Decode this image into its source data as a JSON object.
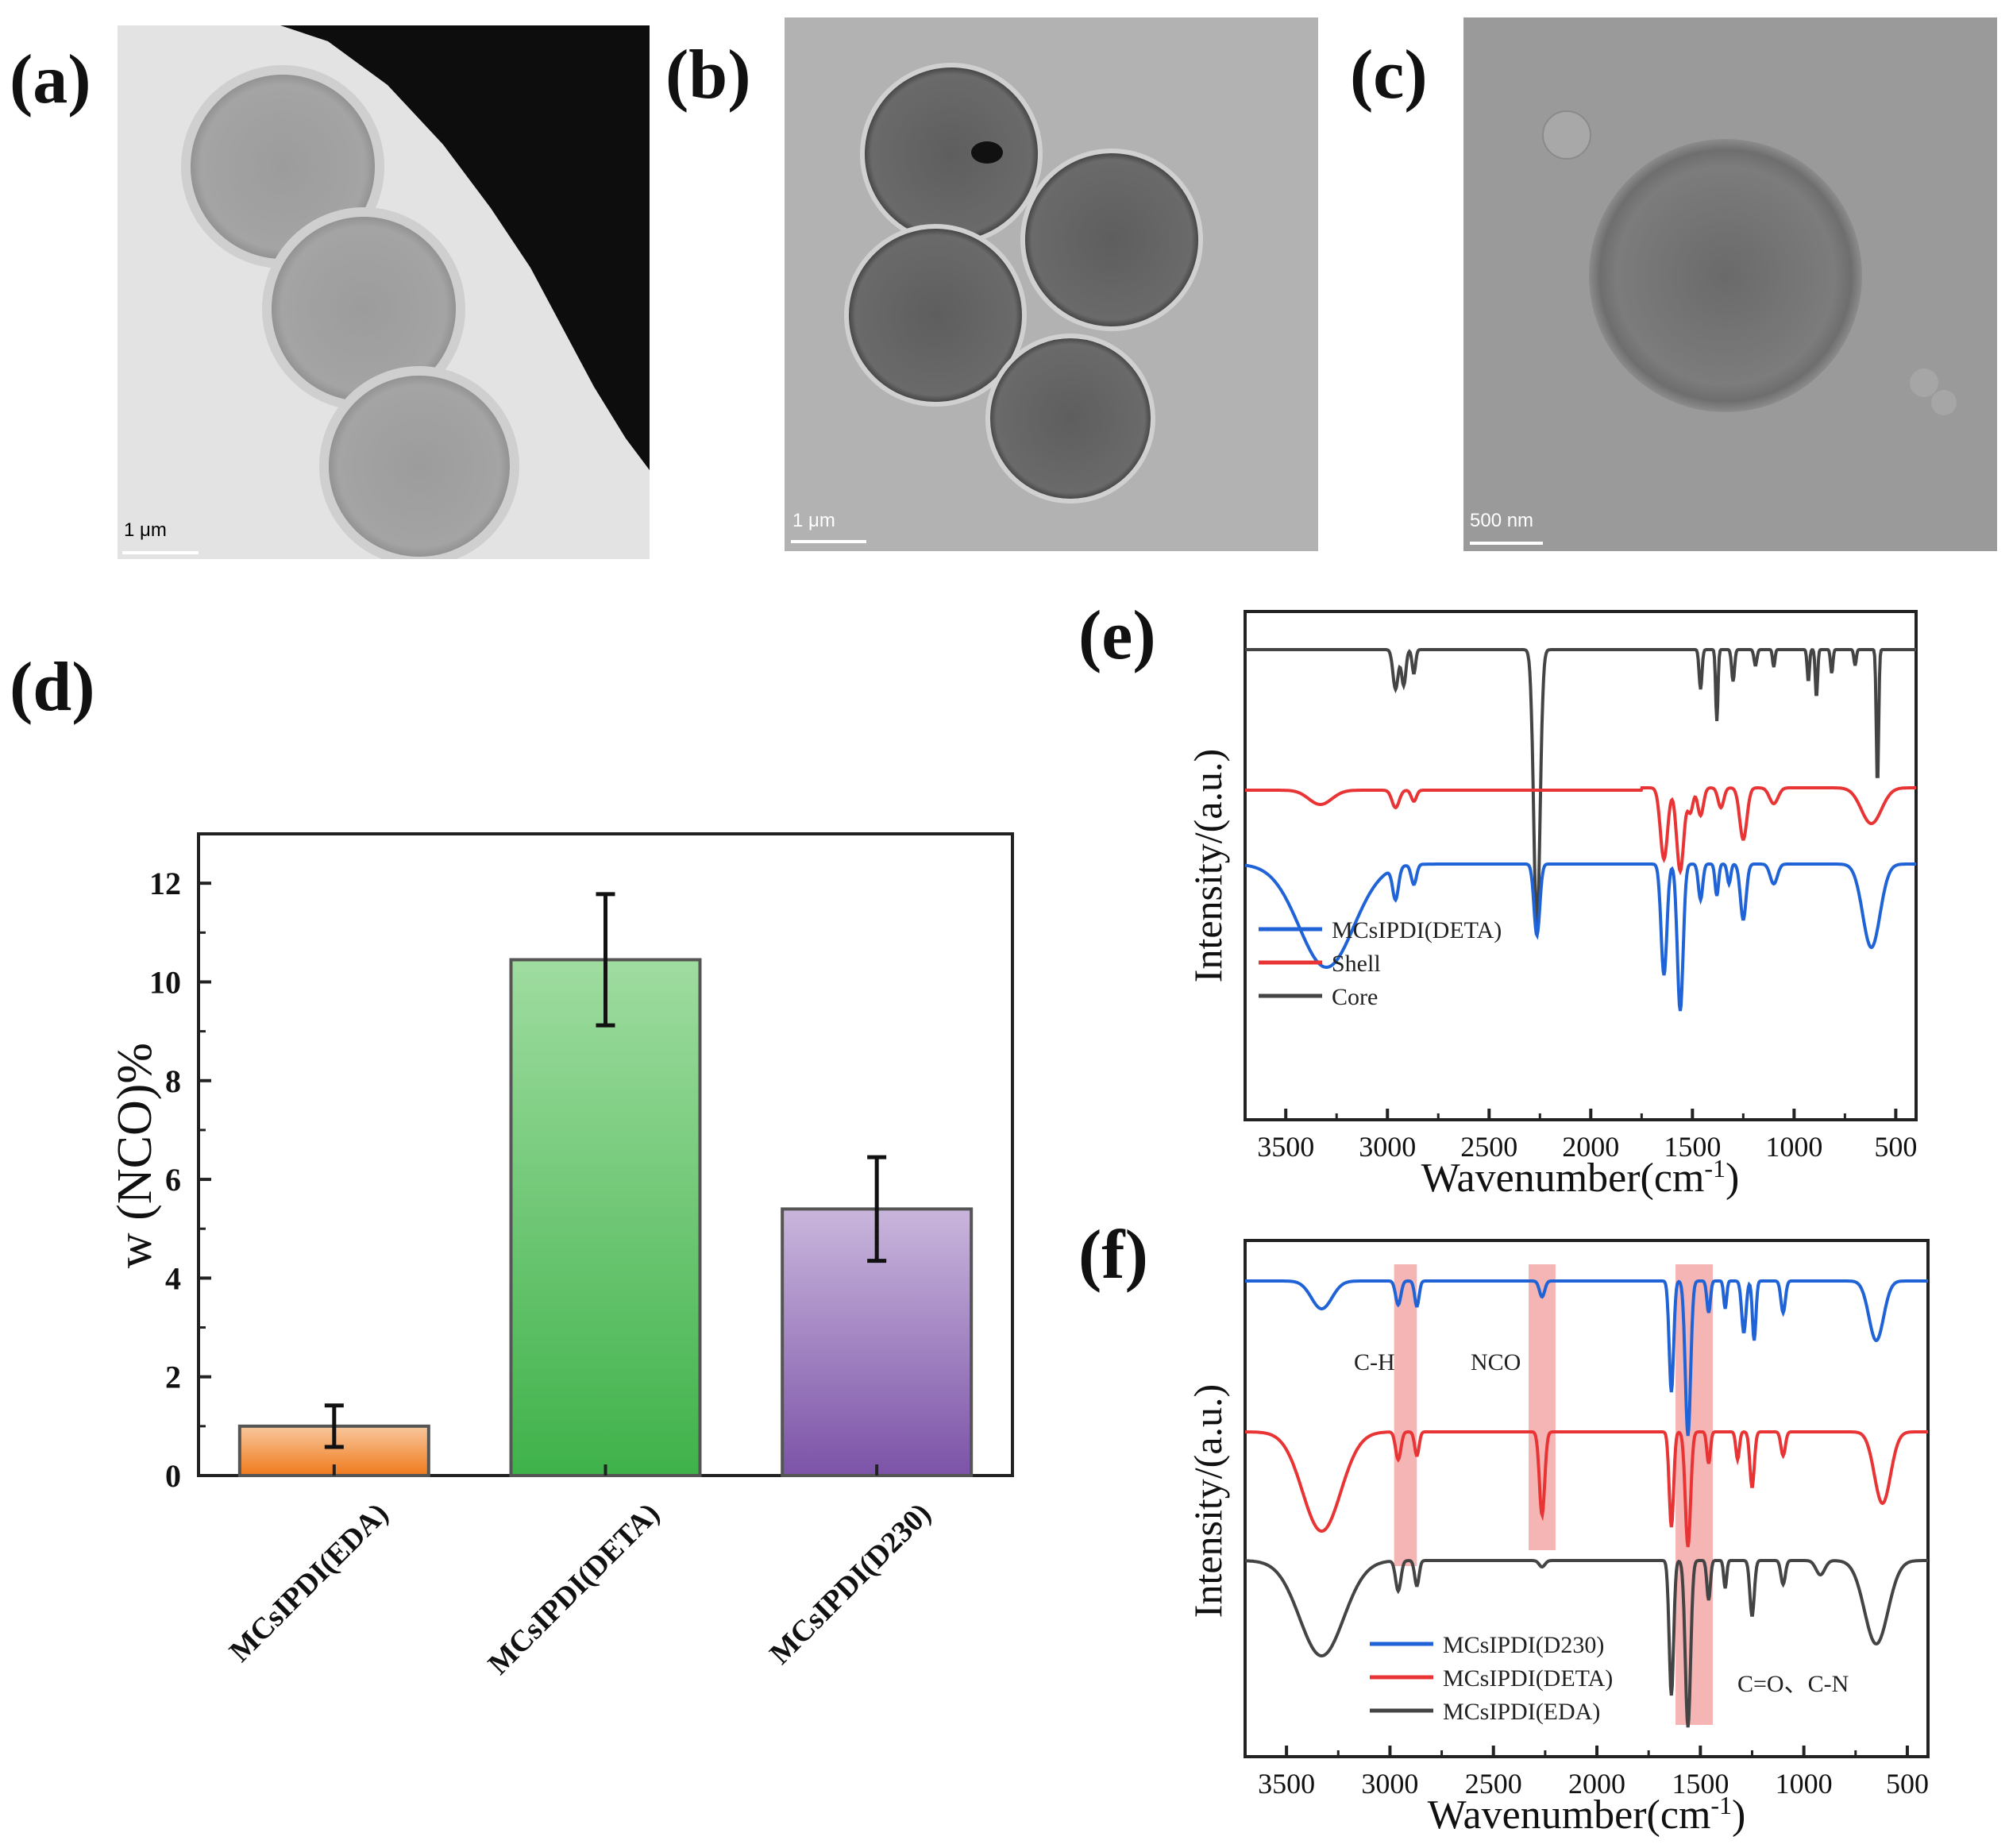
{
  "panels": {
    "a": {
      "label": "(a)",
      "scale": "1 μm"
    },
    "b": {
      "label": "(b)",
      "scale": "1 μm"
    },
    "c": {
      "label": "(c)",
      "scale": "500 nm"
    },
    "d": {
      "label": "(d)"
    },
    "e": {
      "label": "(e)"
    },
    "f": {
      "label": "(f)"
    }
  },
  "chart_data": [
    {
      "id": "d",
      "type": "bar",
      "ylabel": "w (NCO)%",
      "ylim": [
        0,
        13
      ],
      "yticks": [
        0,
        2,
        4,
        6,
        8,
        10,
        12
      ],
      "categories": [
        "MCsIPDI(EDA)",
        "MCsIPDI(DETA)",
        "MCsIPDI(D230)"
      ],
      "values": [
        1.0,
        10.45,
        5.4
      ],
      "errors": [
        0.42,
        1.33,
        1.05
      ],
      "colors": [
        [
          "#f7c79c",
          "#f07a1c"
        ],
        [
          "#9fdca0",
          "#3fb24a"
        ],
        [
          "#c9b6dc",
          "#7c53a8"
        ]
      ]
    },
    {
      "id": "e",
      "type": "line",
      "xlabel": "Wavenumber(cm",
      "xlabel_sup": "-1",
      "xlabel_end": ")",
      "ylabel": "Intensity/(a.u.)",
      "xlim": [
        3700,
        400
      ],
      "xticks": [
        3500,
        3000,
        2500,
        2000,
        1500,
        1000,
        500
      ],
      "series": [
        {
          "name": "MCsIPDI(DETA)",
          "color": "#1f63d6"
        },
        {
          "name": "Shell",
          "color": "#e83434"
        },
        {
          "name": "Core",
          "color": "#444444"
        }
      ]
    },
    {
      "id": "f",
      "type": "line",
      "xlabel": "Wavenumber(cm",
      "xlabel_sup": "-1",
      "xlabel_end": ")",
      "ylabel": "Intensity/(a.u.)",
      "xlim": [
        3700,
        400
      ],
      "xticks": [
        3500,
        3000,
        2500,
        2000,
        1500,
        1000,
        500
      ],
      "annotations": [
        "C-H",
        "NCO",
        "C=O、C-N"
      ],
      "highlight_bands": [
        [
          2980,
          2870
        ],
        [
          2330,
          2200
        ],
        [
          1620,
          1440
        ]
      ],
      "series": [
        {
          "name": "MCsIPDI(D230)",
          "color": "#1f63d6"
        },
        {
          "name": "MCsIPDI(DETA)",
          "color": "#e83434"
        },
        {
          "name": "MCsIPDI(EDA)",
          "color": "#444444"
        }
      ]
    }
  ]
}
